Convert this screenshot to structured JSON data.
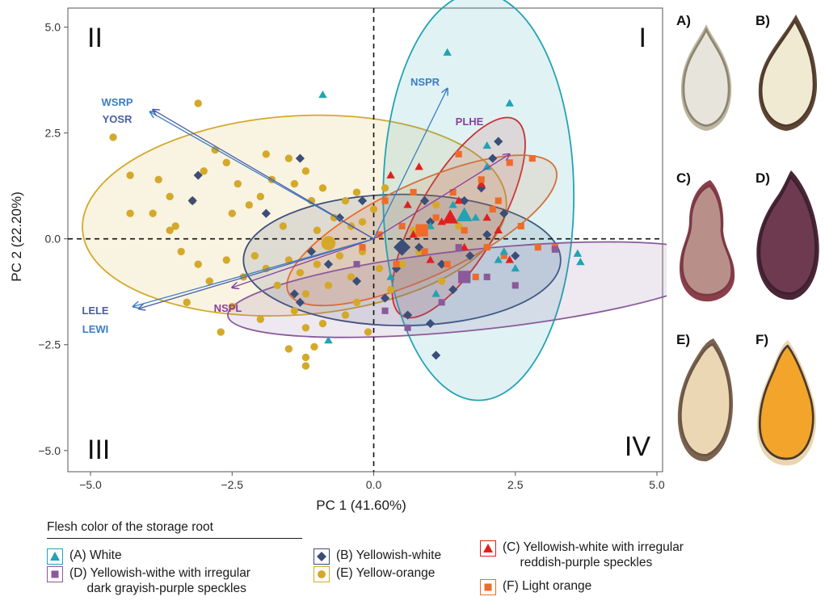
{
  "chart_data": {
    "type": "scatter",
    "xlabel": "PC 1 (41.60%)",
    "ylabel": "PC 2 (22.20%)",
    "xlim": [
      -5.4,
      5.1
    ],
    "ylim": [
      -5.5,
      5.45
    ],
    "xticks": [
      -5.0,
      -2.5,
      0.0,
      2.5,
      5.0
    ],
    "yticks": [
      -5.0,
      -2.5,
      0.0,
      2.5,
      5.0
    ],
    "xtick_labels": [
      "−5.0",
      "−2.5",
      "0.0",
      "2.5",
      "5.0"
    ],
    "ytick_labels": [
      "−5.0",
      "−2.5",
      "0.0",
      "2.5",
      "5.0"
    ],
    "grid": false,
    "reference_lines": "dashed at x=0 and y=0",
    "quadrant_labels": [
      {
        "text": "I",
        "quadrant": "top-right"
      },
      {
        "text": "II",
        "quadrant": "top-left"
      },
      {
        "text": "III",
        "quadrant": "bottom-left"
      },
      {
        "text": "IV",
        "quadrant": "bottom-right"
      }
    ],
    "vectors": [
      {
        "label": "WSRP",
        "x": -3.95,
        "y": 3.0,
        "color": "#3b7dc4"
      },
      {
        "label": "YOSR",
        "x": -3.9,
        "y": 3.05,
        "color": "#4b5ea8"
      },
      {
        "label": "NSPR",
        "x": 1.3,
        "y": 3.55,
        "color": "#3b7dc4"
      },
      {
        "label": "PLHE",
        "x": 2.4,
        "y": 2.0,
        "color": "#8a3fa0"
      },
      {
        "label": "NSPL",
        "x": -2.5,
        "y": -1.15,
        "color": "#8a3fa0"
      },
      {
        "label": "LELE",
        "x": -4.15,
        "y": -1.65,
        "color": "#4b5ea8"
      },
      {
        "label": "LEWI",
        "x": -4.25,
        "y": -1.6,
        "color": "#3b7dc4"
      }
    ],
    "groups": [
      {
        "key": "E",
        "marker": "circle",
        "color": "#d4a92a",
        "ellipse": {
          "cx": -1.4,
          "cy": 0.55,
          "rx": 3.75,
          "ry": 2.35,
          "angle": -4
        },
        "centroid": [
          -0.8,
          -0.1
        ],
        "points": [
          [
            -3.1,
            3.2
          ],
          [
            -4.6,
            2.4
          ],
          [
            -4.3,
            1.5
          ],
          [
            -3.8,
            1.4
          ],
          [
            -3.9,
            0.6
          ],
          [
            -3.6,
            1.0
          ],
          [
            -3.5,
            0.3
          ],
          [
            -3.2,
            0.9
          ],
          [
            -3.0,
            1.6
          ],
          [
            -2.8,
            2.1
          ],
          [
            -2.6,
            1.8
          ],
          [
            -2.4,
            1.3
          ],
          [
            -2.5,
            0.6
          ],
          [
            -2.2,
            0.8
          ],
          [
            -2.0,
            1.0
          ],
          [
            -1.9,
            2.0
          ],
          [
            -1.8,
            1.4
          ],
          [
            -1.5,
            1.9
          ],
          [
            -1.4,
            1.3
          ],
          [
            -1.2,
            1.6
          ],
          [
            -1.1,
            0.9
          ],
          [
            -0.9,
            1.2
          ],
          [
            -0.7,
            0.5
          ],
          [
            -0.5,
            0.9
          ],
          [
            -0.3,
            1.1
          ],
          [
            -0.2,
            0.4
          ],
          [
            0.0,
            0.7
          ],
          [
            0.2,
            1.2
          ],
          [
            -3.4,
            -0.3
          ],
          [
            -3.1,
            -0.6
          ],
          [
            -2.9,
            -1.0
          ],
          [
            -2.6,
            -0.5
          ],
          [
            -2.3,
            -0.9
          ],
          [
            -2.1,
            -0.4
          ],
          [
            -1.9,
            -0.7
          ],
          [
            -1.7,
            -1.1
          ],
          [
            -1.5,
            -0.5
          ],
          [
            -1.3,
            -0.8
          ],
          [
            -1.2,
            -1.3
          ],
          [
            -1.0,
            -0.6
          ],
          [
            -0.8,
            -1.1
          ],
          [
            -0.6,
            -0.4
          ],
          [
            -0.4,
            -0.9
          ],
          [
            -0.2,
            -0.3
          ],
          [
            0.1,
            -0.7
          ],
          [
            0.3,
            -1.2
          ],
          [
            0.5,
            -0.6
          ],
          [
            -2.7,
            -2.2
          ],
          [
            -2.0,
            -1.9
          ],
          [
            -1.4,
            -1.7
          ],
          [
            -1.2,
            -2.1
          ],
          [
            -1.05,
            -2.55
          ],
          [
            -1.2,
            -2.8
          ],
          [
            -1.2,
            -3.0
          ],
          [
            -1.5,
            -2.6
          ],
          [
            -0.9,
            -2.0
          ],
          [
            -0.5,
            -1.8
          ],
          [
            -0.1,
            -2.2
          ],
          [
            -4.3,
            0.6
          ],
          [
            -3.6,
            0.2
          ],
          [
            -1.6,
            0.3
          ],
          [
            -1.0,
            0.2
          ],
          [
            -0.4,
            0.3
          ],
          [
            0.7,
            0.2
          ],
          [
            1.1,
            0.8
          ],
          [
            1.5,
            0.3
          ],
          [
            0.8,
            -0.3
          ],
          [
            1.2,
            -1.0
          ],
          [
            -3.3,
            -1.5
          ],
          [
            -2.5,
            -1.6
          ],
          [
            -0.3,
            -1.5
          ]
        ]
      },
      {
        "key": "B",
        "marker": "diamond",
        "color": "#3a4e78",
        "ellipse": {
          "cx": 0.5,
          "cy": -0.5,
          "rx": 2.8,
          "ry": 1.55,
          "angle": 0
        },
        "centroid": [
          0.5,
          -0.2
        ],
        "points": [
          [
            -3.1,
            1.5
          ],
          [
            -3.2,
            0.9
          ],
          [
            -1.9,
            0.6
          ],
          [
            -1.3,
            1.9
          ],
          [
            -1.1,
            -0.3
          ],
          [
            -0.6,
            0.5
          ],
          [
            -0.2,
            0.9
          ],
          [
            0.4,
            -0.7
          ],
          [
            0.8,
            -0.2
          ],
          [
            1.0,
            0.4
          ],
          [
            1.2,
            -0.6
          ],
          [
            1.6,
            0.9
          ],
          [
            1.9,
            1.2
          ],
          [
            2.1,
            1.9
          ],
          [
            2.2,
            2.3
          ],
          [
            2.3,
            0.6
          ],
          [
            2.0,
            0.1
          ],
          [
            1.7,
            -0.4
          ],
          [
            1.4,
            -1.2
          ],
          [
            1.0,
            -2.0
          ],
          [
            1.1,
            -2.75
          ],
          [
            0.6,
            -1.8
          ],
          [
            0.2,
            -1.4
          ],
          [
            -0.3,
            -1.0
          ],
          [
            -0.8,
            -0.6
          ],
          [
            -1.4,
            -1.3
          ],
          [
            -1.3,
            -1.5
          ],
          [
            2.5,
            -0.4
          ],
          [
            0.9,
            0.9
          ]
        ]
      },
      {
        "key": "C",
        "marker": "triangle",
        "color": "#e02020",
        "ellipse": {
          "cx": 1.5,
          "cy": 0.5,
          "rx": 2.0,
          "ry": 0.95,
          "angle": -60
        },
        "centroid": [
          1.35,
          0.5
        ],
        "points": [
          [
            0.3,
            1.5
          ],
          [
            0.8,
            1.7
          ],
          [
            1.5,
            0.9
          ],
          [
            1.9,
            1.3
          ],
          [
            2.0,
            0.5
          ],
          [
            1.2,
            0.4
          ],
          [
            0.7,
            0.1
          ],
          [
            1.6,
            -0.2
          ],
          [
            2.2,
            0.2
          ],
          [
            2.4,
            -0.5
          ],
          [
            1.0,
            -0.5
          ],
          [
            0.6,
            0.8
          ]
        ]
      },
      {
        "key": "F",
        "marker": "square",
        "color": "#ee6b2a",
        "ellipse": {
          "cx": 0.85,
          "cy": 0.2,
          "rx": 2.6,
          "ry": 1.1,
          "angle": -25
        },
        "centroid": [
          0.85,
          0.2
        ],
        "points": [
          [
            1.5,
            2.0
          ],
          [
            1.9,
            1.4
          ],
          [
            2.2,
            0.9
          ],
          [
            2.4,
            1.8
          ],
          [
            2.8,
            1.9
          ],
          [
            2.6,
            0.3
          ],
          [
            2.3,
            -0.4
          ],
          [
            1.8,
            -0.9
          ],
          [
            1.3,
            -0.6
          ],
          [
            0.9,
            -0.3
          ],
          [
            0.5,
            0.3
          ],
          [
            0.2,
            0.9
          ],
          [
            0.4,
            -0.6
          ],
          [
            1.1,
            0.5
          ],
          [
            1.6,
            0.2
          ],
          [
            2.0,
            -0.2
          ],
          [
            2.9,
            -0.2
          ],
          [
            3.2,
            -0.2
          ],
          [
            0.7,
            1.1
          ],
          [
            0.1,
            0.1
          ],
          [
            -0.2,
            -0.2
          ],
          [
            1.4,
            1.1
          ],
          [
            2.1,
            0.7
          ]
        ]
      },
      {
        "key": "A",
        "marker": "triangle",
        "color": "#22a3b3",
        "ellipse": {
          "cx": 1.85,
          "cy": 1.0,
          "rx": 3.6,
          "ry": 2.25,
          "angle": 90
        },
        "centroid": [
          1.6,
          0.55
        ],
        "points": [
          [
            1.3,
            4.4
          ],
          [
            -0.9,
            3.4
          ],
          [
            2.4,
            3.2
          ],
          [
            2.0,
            2.2
          ],
          [
            2.0,
            1.7
          ],
          [
            1.4,
            0.8
          ],
          [
            1.0,
            0.3
          ],
          [
            1.8,
            0.5
          ],
          [
            2.3,
            -0.3
          ],
          [
            2.5,
            -0.7
          ],
          [
            3.6,
            -0.35
          ],
          [
            3.65,
            -0.55
          ],
          [
            0.3,
            -0.9
          ],
          [
            -0.8,
            -2.4
          ],
          [
            1.1,
            -1.3
          ],
          [
            2.2,
            -0.5
          ]
        ]
      },
      {
        "key": "D",
        "marker": "square",
        "color": "#8a5a9a",
        "ellipse": {
          "cx": 1.8,
          "cy": -1.2,
          "rx": 4.4,
          "ry": 0.95,
          "angle": -6
        },
        "centroid": [
          1.6,
          -0.9
        ],
        "points": [
          [
            3.2,
            -0.25
          ],
          [
            2.5,
            -1.1
          ],
          [
            1.2,
            -1.5
          ],
          [
            0.6,
            -2.1
          ],
          [
            0.2,
            -1.7
          ],
          [
            -0.3,
            -0.6
          ],
          [
            2.0,
            -0.9
          ],
          [
            1.5,
            -0.2
          ]
        ]
      }
    ]
  },
  "photos": [
    {
      "letter": "A)",
      "fill": "#e7e4dc",
      "edge": "#8c8570",
      "skin": "#bfb6a0"
    },
    {
      "letter": "B)",
      "fill": "#f0ead2",
      "edge": "#4e3a2c",
      "skin": "#5e4634"
    },
    {
      "letter": "C)",
      "fill": "#b98f8a",
      "edge": "#7a3a42",
      "skin": "#8a3f4a"
    },
    {
      "letter": "D)",
      "fill": "#6e3a50",
      "edge": "#3c2030",
      "skin": "#4b2636"
    },
    {
      "letter": "E)",
      "fill": "#ecd7b4",
      "edge": "#6a5646",
      "skin": "#7c6350"
    },
    {
      "letter": "F)",
      "fill": "#f2a52a",
      "edge": "#4a3830",
      "skin": "#e8d6b0"
    }
  ],
  "legend": {
    "title": "Flesh color of the storage root",
    "items": [
      {
        "label": "(A) White",
        "marker": "triangle",
        "color": "#22a3b3",
        "border": "#22a3b3"
      },
      {
        "label": "(B) Yellowish-white",
        "marker": "diamond",
        "color": "#3a4e78",
        "border": "#3a4e78"
      },
      {
        "label": "(C) Yellowish-white with irregular\n     reddish-purple speckles",
        "marker": "triangle",
        "color": "#e02020",
        "border": "#e02020"
      },
      {
        "label": "(D) Yellowish-withe with irregular\n     dark grayish-purple speckles",
        "marker": "square",
        "color": "#8a5a9a",
        "border": "#8a5a9a"
      },
      {
        "label": "(E) Yellow-orange",
        "marker": "circle",
        "color": "#d4a92a",
        "border": "#d4a92a"
      },
      {
        "label": "(F) Light orange",
        "marker": "square",
        "color": "#ee6b2a",
        "border": "#ee6b2a"
      }
    ]
  }
}
